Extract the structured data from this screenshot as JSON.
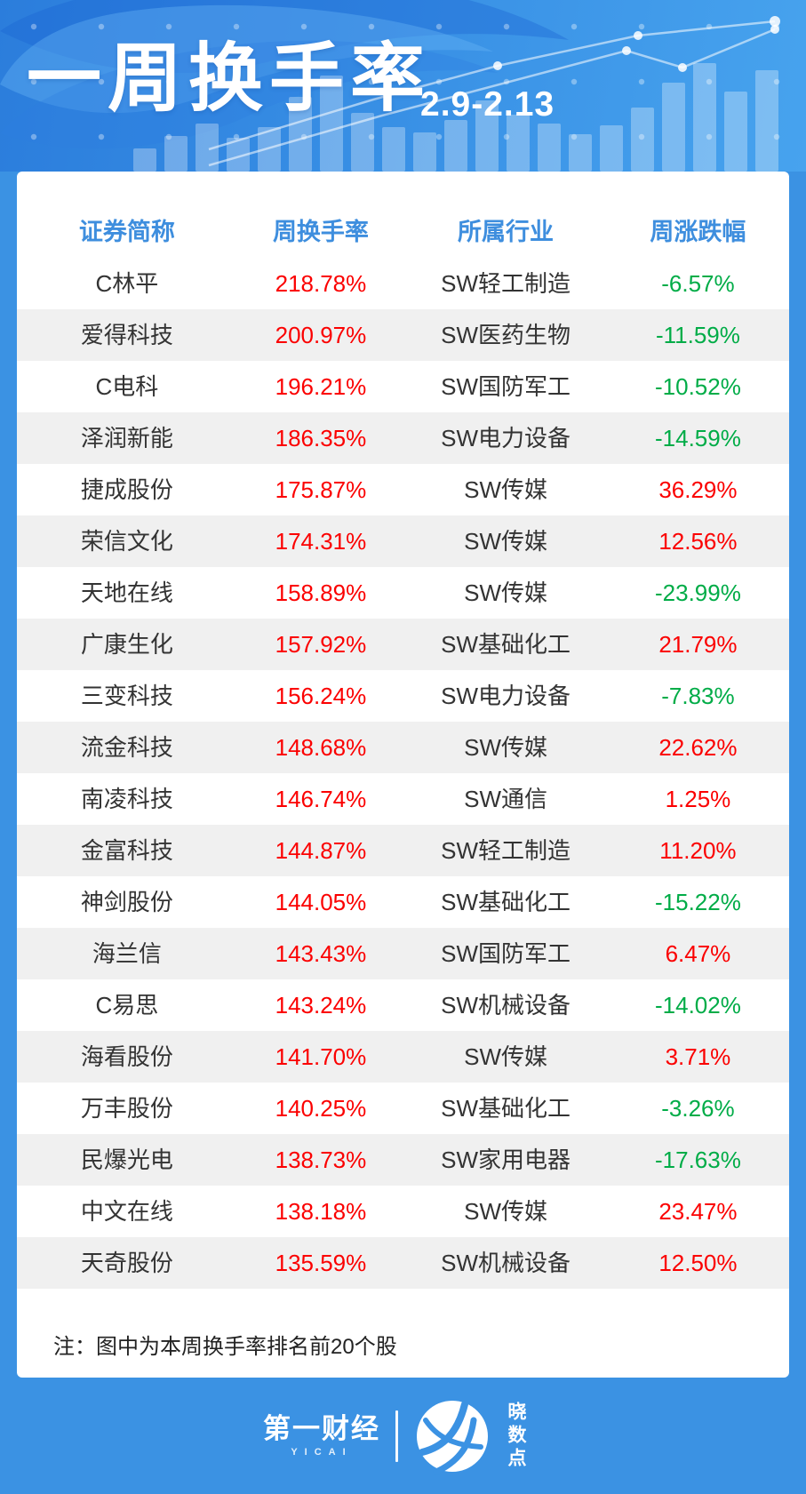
{
  "header": {
    "title": "一周换手率",
    "date_range": "2.9-2.13"
  },
  "chart_data": {
    "type": "table",
    "title": "一周换手率",
    "subtitle": "2.9-2.13",
    "columns": [
      "证券简称",
      "周换手率",
      "所属行业",
      "周涨跌幅"
    ],
    "rows": [
      {
        "name": "C林平",
        "turnover": "218.78%",
        "industry": "SW轻工制造",
        "change": "-6.57%"
      },
      {
        "name": "爱得科技",
        "turnover": "200.97%",
        "industry": "SW医药生物",
        "change": "-11.59%"
      },
      {
        "name": "C电科",
        "turnover": "196.21%",
        "industry": "SW国防军工",
        "change": "-10.52%"
      },
      {
        "name": "泽润新能",
        "turnover": "186.35%",
        "industry": "SW电力设备",
        "change": "-14.59%"
      },
      {
        "name": "捷成股份",
        "turnover": "175.87%",
        "industry": "SW传媒",
        "change": "36.29%"
      },
      {
        "name": "荣信文化",
        "turnover": "174.31%",
        "industry": "SW传媒",
        "change": "12.56%"
      },
      {
        "name": "天地在线",
        "turnover": "158.89%",
        "industry": "SW传媒",
        "change": "-23.99%"
      },
      {
        "name": "广康生化",
        "turnover": "157.92%",
        "industry": "SW基础化工",
        "change": "21.79%"
      },
      {
        "name": "三变科技",
        "turnover": "156.24%",
        "industry": "SW电力设备",
        "change": "-7.83%"
      },
      {
        "name": "流金科技",
        "turnover": "148.68%",
        "industry": "SW传媒",
        "change": "22.62%"
      },
      {
        "name": "南凌科技",
        "turnover": "146.74%",
        "industry": "SW通信",
        "change": "1.25%"
      },
      {
        "name": "金富科技",
        "turnover": "144.87%",
        "industry": "SW轻工制造",
        "change": "11.20%"
      },
      {
        "name": "神剑股份",
        "turnover": "144.05%",
        "industry": "SW基础化工",
        "change": "-15.22%"
      },
      {
        "name": "海兰信",
        "turnover": "143.43%",
        "industry": "SW国防军工",
        "change": "6.47%"
      },
      {
        "name": "C易思",
        "turnover": "143.24%",
        "industry": "SW机械设备",
        "change": "-14.02%"
      },
      {
        "name": "海看股份",
        "turnover": "141.70%",
        "industry": "SW传媒",
        "change": "3.71%"
      },
      {
        "name": "万丰股份",
        "turnover": "140.25%",
        "industry": "SW基础化工",
        "change": "-3.26%"
      },
      {
        "name": "民爆光电",
        "turnover": "138.73%",
        "industry": "SW家用电器",
        "change": "-17.63%"
      },
      {
        "name": "中文在线",
        "turnover": "138.18%",
        "industry": "SW传媒",
        "change": "23.47%"
      },
      {
        "name": "天奇股份",
        "turnover": "135.59%",
        "industry": "SW机械设备",
        "change": "12.50%"
      }
    ],
    "layout_hints": {
      "striped_rows": "even",
      "value_colors": "positive red, negative green"
    }
  },
  "note": "注：图中为本周换手率排名前20个股",
  "footer": {
    "brand_left": "第一财经",
    "brand_left_sub": "YICAI",
    "brand_right": "晓数点"
  },
  "colors": {
    "background_blue": "#3b92e3",
    "header_gradient_start": "#2b7ddc",
    "header_gradient_end": "#47a3ee",
    "column_header_blue": "#3e8ede",
    "positive_red": "#fb0000",
    "negative_green": "#00ac47",
    "stripe_gray": "#f0f0f0",
    "text_dark": "#333333"
  }
}
